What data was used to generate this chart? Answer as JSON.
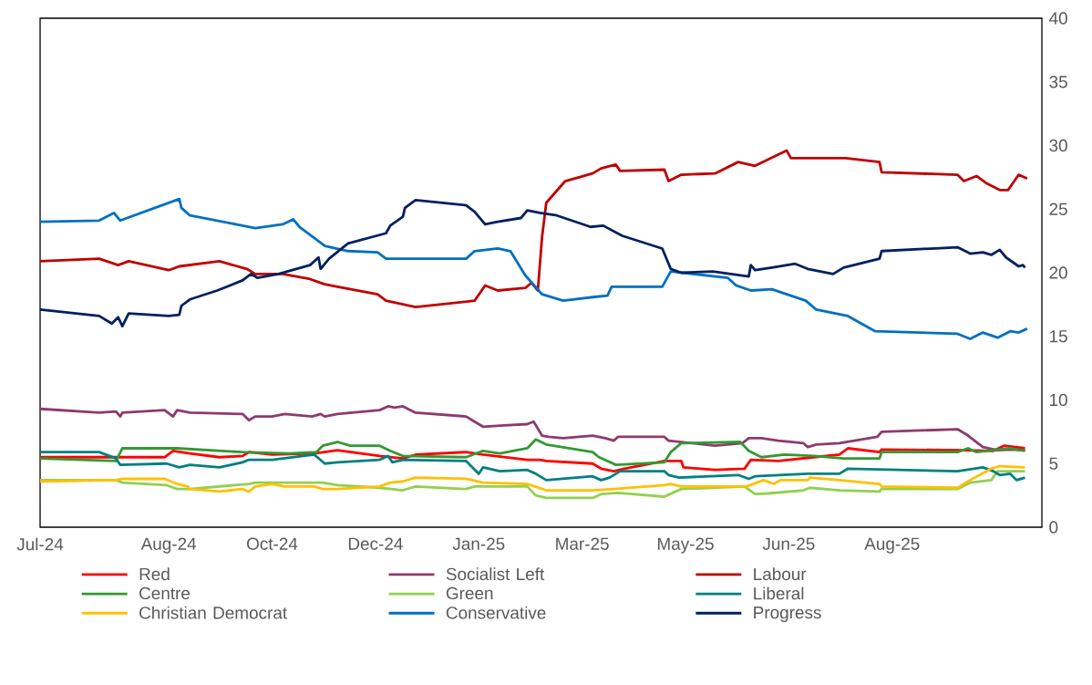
{
  "chart_data": {
    "type": "line",
    "xlim": [
      "2024-07-01",
      "2025-10-19"
    ],
    "ylim": [
      0,
      40
    ],
    "xticks": [
      {
        "value": "2024-07-01",
        "label": "Jul-24"
      },
      {
        "value": "2024-08-31",
        "label": "Aug-24"
      },
      {
        "value": "2024-10-19",
        "label": "Oct-24"
      },
      {
        "value": "2024-12-07",
        "label": "Dec-24"
      },
      {
        "value": "2025-01-25",
        "label": "Jan-25"
      },
      {
        "value": "2025-03-15",
        "label": "Mar-25"
      },
      {
        "value": "2025-05-03",
        "label": "May-25"
      },
      {
        "value": "2025-06-21",
        "label": "Jun-25"
      },
      {
        "value": "2025-08-09",
        "label": "Aug-25"
      }
    ],
    "yticks": [
      0,
      5,
      10,
      15,
      20,
      25,
      30,
      35,
      40
    ],
    "legend": "bottom",
    "marker": "none",
    "line_style": "solid",
    "series": [
      {
        "name": "Red",
        "color": "#ff0000",
        "x": [
          "2024-07-01",
          "2024-08-09",
          "2024-08-29",
          "2024-09-02",
          "2024-09-10",
          "2024-09-24",
          "2024-10-05",
          "2024-10-08",
          "2024-10-19",
          "2024-11-08",
          "2024-11-19",
          "2024-12-09",
          "2024-12-20",
          "2024-12-26",
          "2025-01-19",
          "2025-01-27",
          "2025-02-17",
          "2025-02-23",
          "2025-02-26",
          "2025-03-20",
          "2025-03-24",
          "2025-03-30",
          "2025-04-04",
          "2025-04-23",
          "2025-05-01",
          "2025-05-02",
          "2025-05-17",
          "2025-05-31",
          "2025-06-03",
          "2025-06-16",
          "2025-07-03",
          "2025-07-15",
          "2025-07-19",
          "2025-08-03",
          "2025-08-04",
          "2025-09-12",
          "2025-09-26",
          "2025-10-01",
          "2025-10-11"
        ],
        "values": [
          5.5,
          5.5,
          5.5,
          6.0,
          5.8,
          5.5,
          5.6,
          5.9,
          5.7,
          5.8,
          6.05,
          5.6,
          5.4,
          5.7,
          5.9,
          5.7,
          5.3,
          5.3,
          5.2,
          5.0,
          4.6,
          4.4,
          4.6,
          5.2,
          5.2,
          4.7,
          4.5,
          4.6,
          5.3,
          5.2,
          5.5,
          5.7,
          6.2,
          5.9,
          6.1,
          6.05,
          6.0,
          6.4,
          6.2
        ]
      },
      {
        "name": "Socialist Left",
        "color": "#8e3a6e",
        "x": [
          "2024-07-01",
          "2024-07-29",
          "2024-08-06",
          "2024-08-08",
          "2024-08-09",
          "2024-08-29",
          "2024-09-02",
          "2024-09-04",
          "2024-09-10",
          "2024-10-05",
          "2024-10-08",
          "2024-10-11",
          "2024-10-19",
          "2024-10-25",
          "2024-11-07",
          "2024-11-11",
          "2024-11-13",
          "2024-11-19",
          "2024-12-09",
          "2024-12-13",
          "2024-12-16",
          "2024-12-20",
          "2024-12-26",
          "2025-01-19",
          "2025-01-23",
          "2025-01-27",
          "2025-02-06",
          "2025-02-17",
          "2025-02-20",
          "2025-02-24",
          "2025-02-27",
          "2025-03-06",
          "2025-03-20",
          "2025-03-26",
          "2025-03-30",
          "2025-04-01",
          "2025-04-23",
          "2025-04-25",
          "2025-05-01",
          "2025-05-17",
          "2025-05-30",
          "2025-06-02",
          "2025-06-08",
          "2025-06-16",
          "2025-06-28",
          "2025-06-30",
          "2025-07-04",
          "2025-07-15",
          "2025-08-02",
          "2025-08-04",
          "2025-09-09",
          "2025-09-14",
          "2025-09-21",
          "2025-09-28",
          "2025-10-04",
          "2025-10-11"
        ],
        "values": [
          9.3,
          9.0,
          9.1,
          8.7,
          9.0,
          9.2,
          8.7,
          9.2,
          9.0,
          8.9,
          8.4,
          8.7,
          8.7,
          8.9,
          8.7,
          8.9,
          8.7,
          8.9,
          9.2,
          9.5,
          9.4,
          9.5,
          9.0,
          8.7,
          8.3,
          7.9,
          8.0,
          8.1,
          8.3,
          7.2,
          7.1,
          7.0,
          7.2,
          7.0,
          6.8,
          7.1,
          7.1,
          6.8,
          6.7,
          6.4,
          6.6,
          7.0,
          7.0,
          6.8,
          6.6,
          6.3,
          6.5,
          6.6,
          7.1,
          7.5,
          7.7,
          7.2,
          6.3,
          6.05,
          6.1,
          6.05
        ]
      },
      {
        "name": "Labour",
        "color": "#c00000",
        "x": [
          "2024-07-01",
          "2024-07-29",
          "2024-08-07",
          "2024-08-12",
          "2024-08-31",
          "2024-09-05",
          "2024-09-24",
          "2024-10-07",
          "2024-10-11",
          "2024-10-24",
          "2024-11-06",
          "2024-11-11",
          "2024-11-13",
          "2024-11-19",
          "2024-12-08",
          "2024-12-12",
          "2024-12-26",
          "2025-01-23",
          "2025-01-28",
          "2025-02-03",
          "2025-02-16",
          "2025-02-19",
          "2025-02-22",
          "2025-02-24",
          "2025-02-26",
          "2025-03-07",
          "2025-03-20",
          "2025-03-24",
          "2025-03-31",
          "2025-04-02",
          "2025-04-23",
          "2025-04-25",
          "2025-05-01",
          "2025-05-17",
          "2025-05-28",
          "2025-06-05",
          "2025-06-20",
          "2025-06-22",
          "2025-07-18",
          "2025-08-03",
          "2025-08-04",
          "2025-09-09",
          "2025-09-12",
          "2025-09-18",
          "2025-09-23",
          "2025-09-29",
          "2025-10-03",
          "2025-10-08",
          "2025-10-12"
        ],
        "values": [
          20.9,
          21.1,
          20.6,
          20.9,
          20.2,
          20.5,
          20.9,
          20.3,
          19.9,
          19.9,
          19.5,
          19.2,
          19.1,
          18.9,
          18.3,
          17.8,
          17.3,
          17.8,
          19.0,
          18.6,
          18.8,
          19.2,
          18.6,
          22.8,
          25.5,
          27.2,
          27.8,
          28.2,
          28.5,
          28.0,
          28.1,
          27.2,
          27.7,
          27.8,
          28.7,
          28.4,
          29.6,
          29.0,
          29.0,
          28.7,
          27.9,
          27.7,
          27.2,
          27.6,
          27.0,
          26.5,
          26.5,
          27.7,
          27.4
        ]
      },
      {
        "name": "Centre",
        "color": "#339933",
        "x": [
          "2024-07-01",
          "2024-08-06",
          "2024-08-09",
          "2024-08-30",
          "2024-09-04",
          "2024-10-05",
          "2024-10-27",
          "2024-11-09",
          "2024-11-12",
          "2024-11-19",
          "2024-11-25",
          "2024-12-09",
          "2024-12-14",
          "2024-12-20",
          "2025-01-19",
          "2025-01-27",
          "2025-02-04",
          "2025-02-17",
          "2025-02-21",
          "2025-02-26",
          "2025-03-20",
          "2025-03-23",
          "2025-03-31",
          "2025-04-23",
          "2025-04-26",
          "2025-05-01",
          "2025-05-29",
          "2025-06-02",
          "2025-06-08",
          "2025-06-19",
          "2025-07-03",
          "2025-07-17",
          "2025-08-03",
          "2025-08-04",
          "2025-09-09",
          "2025-09-14",
          "2025-09-18",
          "2025-09-28",
          "2025-10-04",
          "2025-10-11"
        ],
        "values": [
          5.4,
          5.2,
          6.2,
          6.2,
          6.2,
          5.9,
          5.8,
          5.9,
          6.4,
          6.7,
          6.4,
          6.4,
          6.0,
          5.6,
          5.5,
          6.0,
          5.8,
          6.2,
          6.9,
          6.5,
          5.9,
          5.5,
          4.9,
          5.1,
          5.9,
          6.6,
          6.7,
          6.0,
          5.5,
          5.7,
          5.6,
          5.4,
          5.4,
          5.9,
          5.9,
          6.2,
          5.9,
          6.1,
          6.2,
          6.0
        ]
      },
      {
        "name": "Green",
        "color": "#92d050",
        "x": [
          "2024-07-01",
          "2024-08-06",
          "2024-08-09",
          "2024-08-30",
          "2024-09-04",
          "2024-09-10",
          "2024-10-08",
          "2024-10-11",
          "2024-11-12",
          "2024-11-19",
          "2024-12-09",
          "2024-12-20",
          "2024-12-26",
          "2025-01-19",
          "2025-01-23",
          "2025-02-17",
          "2025-02-21",
          "2025-02-26",
          "2025-03-20",
          "2025-03-24",
          "2025-04-01",
          "2025-04-23",
          "2025-05-01",
          "2025-05-31",
          "2025-06-05",
          "2025-06-11",
          "2025-06-28",
          "2025-07-01",
          "2025-07-15",
          "2025-08-03",
          "2025-08-04",
          "2025-09-09",
          "2025-09-15",
          "2025-09-25",
          "2025-09-28",
          "2025-10-11"
        ],
        "values": [
          3.7,
          3.7,
          3.5,
          3.3,
          3.0,
          3.0,
          3.4,
          3.5,
          3.5,
          3.3,
          3.1,
          2.9,
          3.2,
          3.0,
          3.2,
          3.2,
          2.5,
          2.3,
          2.3,
          2.6,
          2.7,
          2.4,
          3.0,
          3.2,
          2.6,
          2.65,
          2.9,
          3.1,
          2.9,
          2.8,
          3.0,
          3.0,
          3.5,
          3.7,
          4.4,
          4.4
        ]
      },
      {
        "name": "Liberal",
        "color": "#008080",
        "x": [
          "2024-07-01",
          "2024-07-29",
          "2024-08-06",
          "2024-08-08",
          "2024-08-30",
          "2024-09-05",
          "2024-09-10",
          "2024-09-24",
          "2024-10-05",
          "2024-10-08",
          "2024-10-19",
          "2024-11-08",
          "2024-11-13",
          "2024-11-19",
          "2024-12-09",
          "2024-12-13",
          "2024-12-15",
          "2024-12-20",
          "2025-01-19",
          "2025-01-25",
          "2025-01-27",
          "2025-02-04",
          "2025-02-17",
          "2025-02-21",
          "2025-02-26",
          "2025-03-20",
          "2025-03-24",
          "2025-03-28",
          "2025-04-02",
          "2025-04-23",
          "2025-04-25",
          "2025-04-30",
          "2025-05-28",
          "2025-06-02",
          "2025-06-05",
          "2025-06-30",
          "2025-07-15",
          "2025-07-19",
          "2025-09-09",
          "2025-09-21",
          "2025-09-26",
          "2025-09-29",
          "2025-10-04",
          "2025-10-07",
          "2025-10-11"
        ],
        "values": [
          5.9,
          5.9,
          5.4,
          4.9,
          5.0,
          4.7,
          4.9,
          4.7,
          5.1,
          5.3,
          5.3,
          5.7,
          5.0,
          5.1,
          5.3,
          5.6,
          5.1,
          5.3,
          5.2,
          4.2,
          4.7,
          4.4,
          4.5,
          4.2,
          3.7,
          4.0,
          3.7,
          3.9,
          4.4,
          4.4,
          4.1,
          3.9,
          4.1,
          3.8,
          4.0,
          4.2,
          4.2,
          4.6,
          4.4,
          4.7,
          4.4,
          4.1,
          4.2,
          3.7,
          3.9
        ]
      },
      {
        "name": "Christian Democrat",
        "color": "#ffc000",
        "x": [
          "2024-07-01",
          "2024-08-06",
          "2024-08-09",
          "2024-08-29",
          "2024-09-04",
          "2024-09-09",
          "2024-09-10",
          "2024-09-24",
          "2024-10-05",
          "2024-10-08",
          "2024-10-11",
          "2024-10-19",
          "2024-10-25",
          "2024-11-08",
          "2024-11-12",
          "2024-11-19",
          "2024-12-09",
          "2024-12-14",
          "2024-12-20",
          "2024-12-26",
          "2025-01-19",
          "2025-01-27",
          "2025-02-17",
          "2025-02-26",
          "2025-03-20",
          "2025-03-30",
          "2025-04-23",
          "2025-04-26",
          "2025-05-01",
          "2025-06-01",
          "2025-06-09",
          "2025-06-14",
          "2025-06-17",
          "2025-06-30",
          "2025-07-01",
          "2025-07-15",
          "2025-08-03",
          "2025-08-04",
          "2025-09-09",
          "2025-09-15",
          "2025-09-25",
          "2025-09-29",
          "2025-10-11"
        ],
        "values": [
          3.6,
          3.7,
          3.8,
          3.8,
          3.4,
          3.2,
          3.0,
          2.8,
          3.0,
          2.8,
          3.2,
          3.4,
          3.2,
          3.2,
          3.0,
          3.0,
          3.2,
          3.5,
          3.6,
          3.9,
          3.8,
          3.5,
          3.4,
          2.9,
          2.9,
          3.0,
          3.3,
          3.4,
          3.2,
          3.2,
          3.7,
          3.4,
          3.7,
          3.7,
          3.9,
          3.7,
          3.4,
          3.2,
          3.1,
          3.7,
          4.6,
          4.8,
          4.7
        ]
      },
      {
        "name": "Conservative",
        "color": "#0070c0",
        "x": [
          "2024-07-01",
          "2024-07-29",
          "2024-08-05",
          "2024-08-08",
          "2024-09-05",
          "2024-09-06",
          "2024-09-10",
          "2024-10-05",
          "2024-10-11",
          "2024-10-24",
          "2024-10-29",
          "2024-11-01",
          "2024-11-13",
          "2024-11-24",
          "2024-12-08",
          "2024-12-12",
          "2025-01-19",
          "2025-01-23",
          "2025-02-03",
          "2025-02-09",
          "2025-02-16",
          "2025-02-24",
          "2025-03-06",
          "2025-03-21",
          "2025-03-27",
          "2025-03-29",
          "2025-04-22",
          "2025-04-26",
          "2025-05-23",
          "2025-05-27",
          "2025-06-03",
          "2025-06-13",
          "2025-06-29",
          "2025-07-04",
          "2025-07-19",
          "2025-08-01",
          "2025-09-09",
          "2025-09-15",
          "2025-09-21",
          "2025-09-28",
          "2025-10-04",
          "2025-10-08",
          "2025-10-12"
        ],
        "values": [
          24.0,
          24.1,
          24.7,
          24.1,
          25.8,
          25.1,
          24.5,
          23.7,
          23.5,
          23.8,
          24.2,
          23.6,
          22.1,
          21.7,
          21.6,
          21.1,
          21.1,
          21.7,
          21.9,
          21.7,
          19.8,
          18.3,
          17.8,
          18.1,
          18.2,
          18.9,
          18.9,
          20.1,
          19.6,
          19.0,
          18.6,
          18.7,
          17.8,
          17.1,
          16.6,
          15.4,
          15.2,
          14.8,
          15.3,
          14.9,
          15.4,
          15.3,
          15.6
        ]
      },
      {
        "name": "Progress",
        "color": "#002060",
        "x": [
          "2024-07-01",
          "2024-07-29",
          "2024-08-04",
          "2024-08-07",
          "2024-08-09",
          "2024-08-12",
          "2024-08-31",
          "2024-09-05",
          "2024-09-06",
          "2024-09-10",
          "2024-09-23",
          "2024-10-05",
          "2024-10-09",
          "2024-10-12",
          "2024-10-22",
          "2024-11-06",
          "2024-11-10",
          "2024-11-11",
          "2024-11-15",
          "2024-11-24",
          "2024-12-12",
          "2024-12-14",
          "2024-12-20",
          "2024-12-21",
          "2024-12-26",
          "2025-01-19",
          "2025-01-23",
          "2025-01-28",
          "2025-02-03",
          "2025-02-14",
          "2025-02-17",
          "2025-02-23",
          "2025-03-03",
          "2025-03-19",
          "2025-03-25",
          "2025-04-03",
          "2025-04-22",
          "2025-04-26",
          "2025-05-01",
          "2025-05-16",
          "2025-06-02",
          "2025-06-03",
          "2025-06-05",
          "2025-06-13",
          "2025-06-24",
          "2025-06-30",
          "2025-07-12",
          "2025-07-17",
          "2025-08-03",
          "2025-08-04",
          "2025-09-09",
          "2025-09-15",
          "2025-09-21",
          "2025-09-25",
          "2025-09-29",
          "2025-10-02",
          "2025-10-08",
          "2025-10-10",
          "2025-10-11"
        ],
        "values": [
          17.1,
          16.6,
          16.0,
          16.5,
          15.8,
          16.8,
          16.6,
          16.7,
          17.4,
          17.9,
          18.6,
          19.4,
          19.9,
          19.6,
          19.9,
          20.6,
          21.2,
          20.3,
          21.1,
          22.3,
          23.1,
          23.7,
          24.4,
          25.1,
          25.7,
          25.3,
          24.8,
          23.8,
          24.0,
          24.3,
          24.9,
          24.7,
          24.5,
          23.6,
          23.7,
          22.9,
          21.9,
          20.3,
          20.0,
          20.1,
          19.7,
          20.6,
          20.2,
          20.4,
          20.7,
          20.3,
          19.9,
          20.4,
          21.1,
          21.7,
          22.0,
          21.5,
          21.6,
          21.4,
          21.8,
          21.2,
          20.5,
          20.6,
          20.4
        ]
      }
    ]
  }
}
